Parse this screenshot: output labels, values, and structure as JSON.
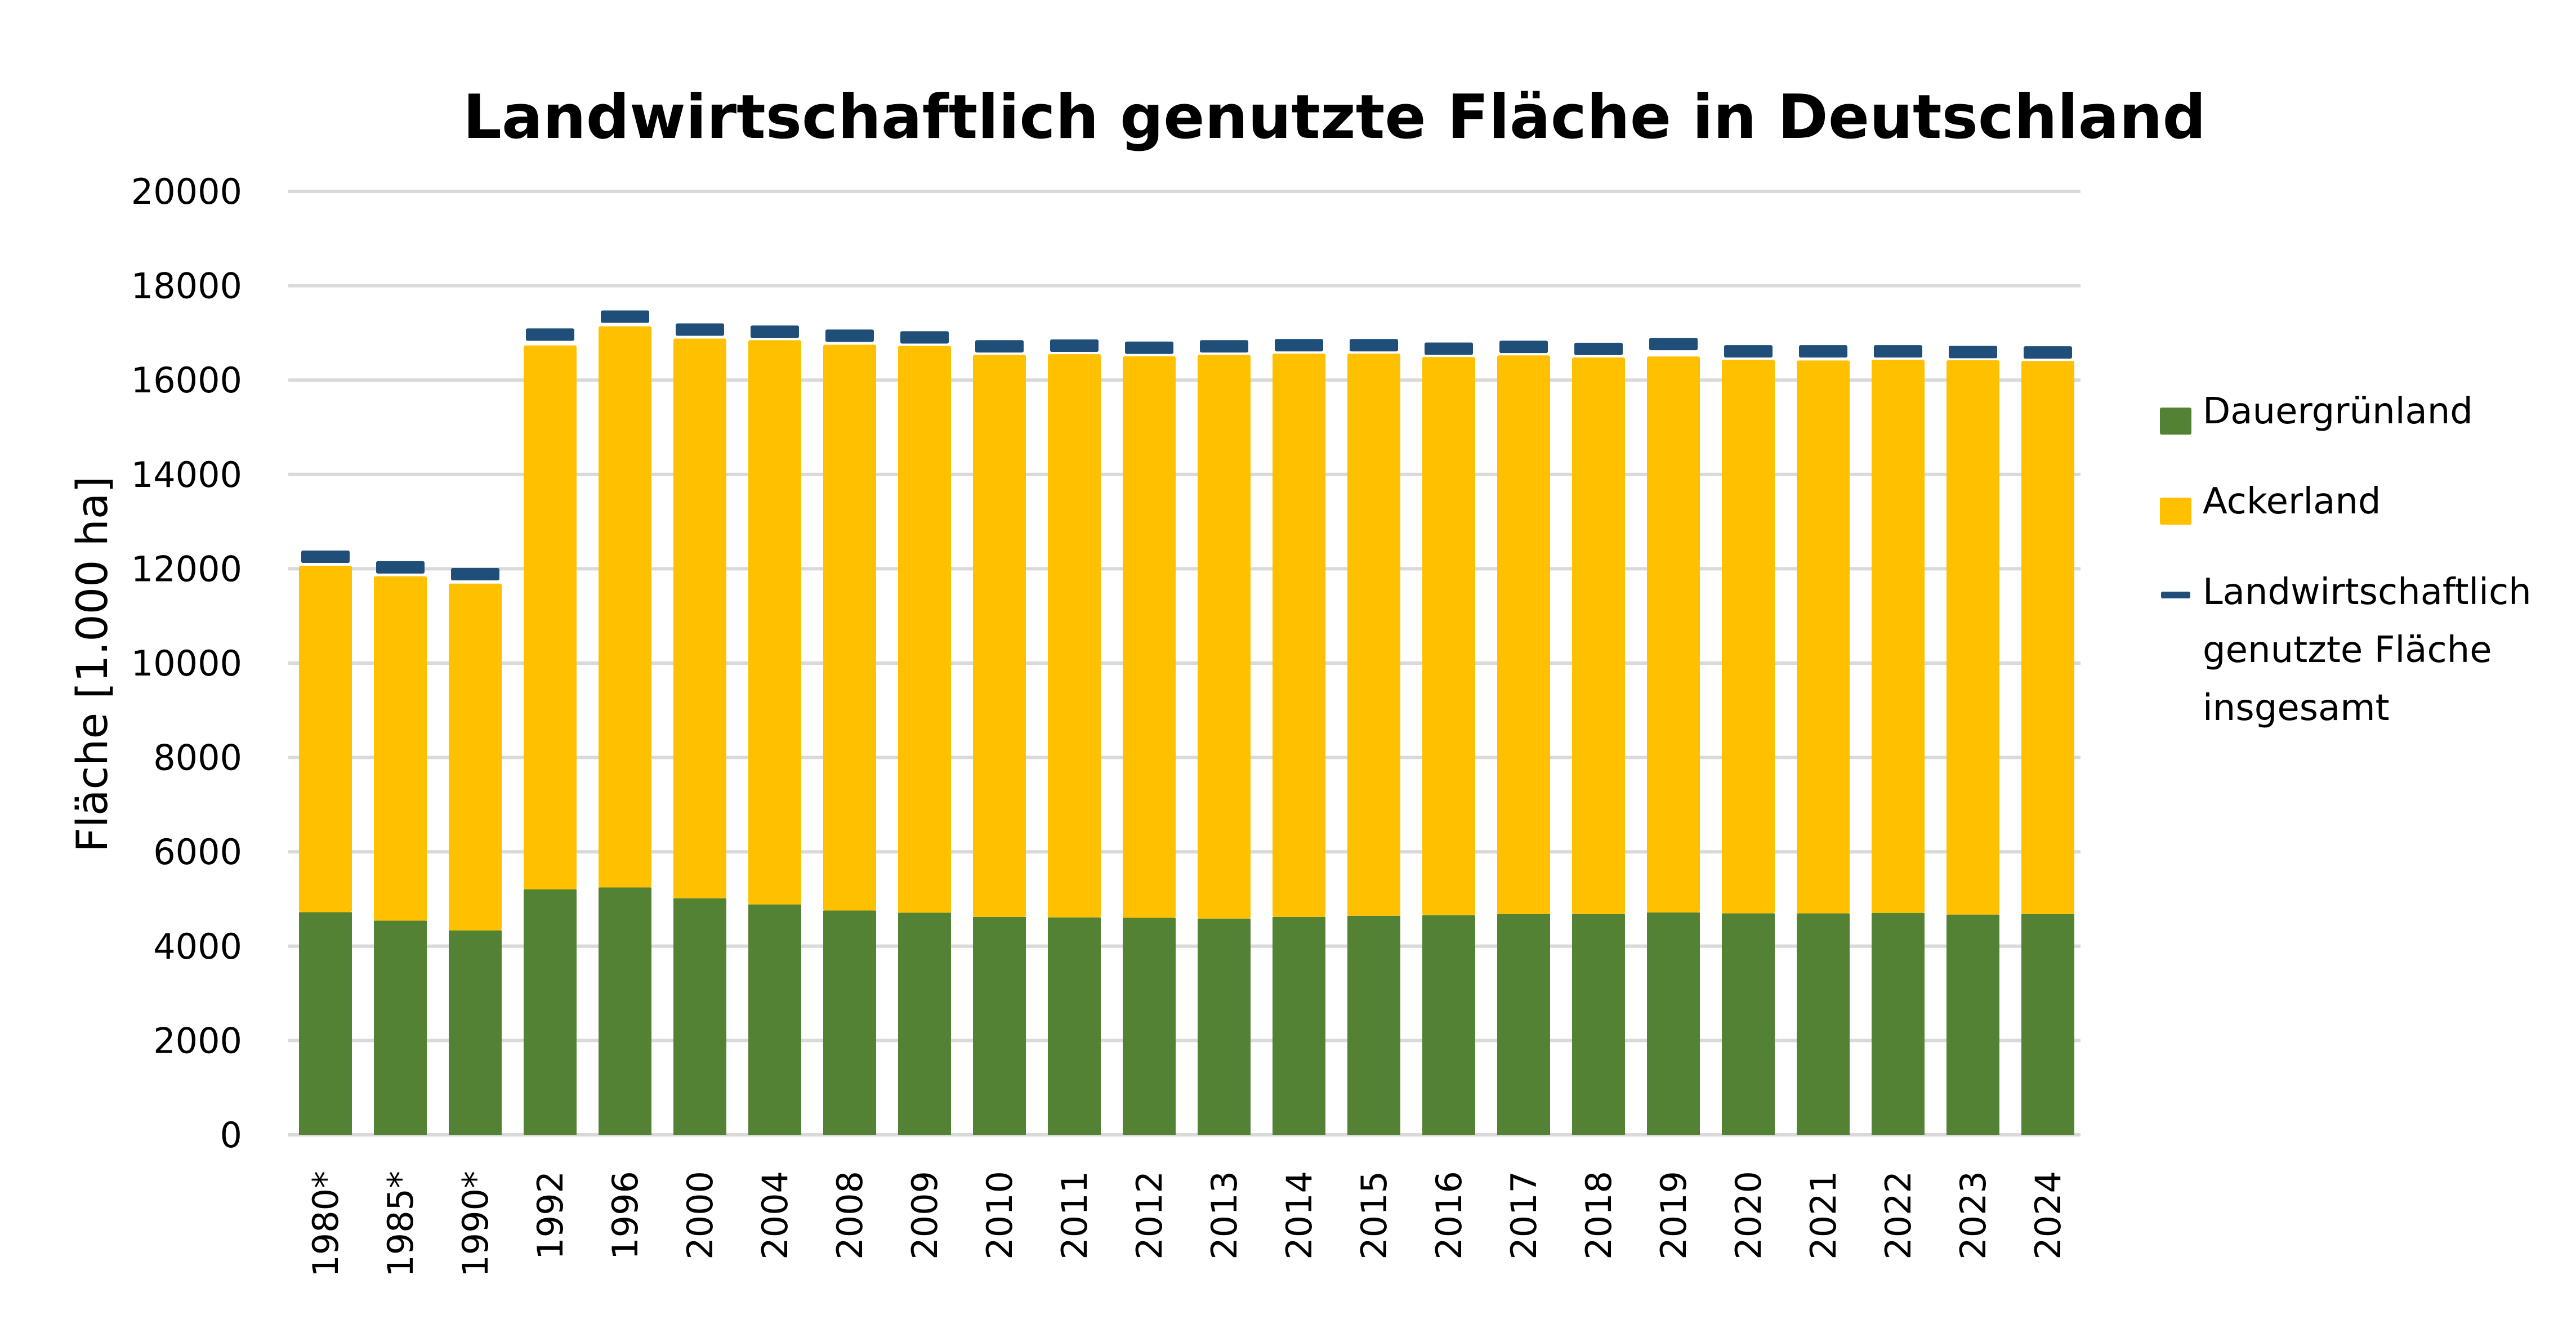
{
  "chart_data": {
    "type": "bar",
    "stacked": true,
    "title": "Landwirtschaftlich genutzte Fläche in Deutschland",
    "xlabel": "",
    "ylabel": "Fläche [1.000 ha]",
    "ylim": [
      0,
      20000
    ],
    "yticks": [
      0,
      2000,
      4000,
      6000,
      8000,
      10000,
      12000,
      14000,
      16000,
      18000,
      20000
    ],
    "grid": true,
    "legend_position": "right",
    "categories": [
      "1980*",
      "1985*",
      "1990*",
      "1992",
      "1996",
      "2000",
      "2004",
      "2008",
      "2009",
      "2010",
      "2011",
      "2012",
      "2013",
      "2014",
      "2015",
      "2016",
      "2017",
      "2018",
      "2019",
      "2020",
      "2021",
      "2022",
      "2023",
      "2024"
    ],
    "series": [
      {
        "name": "Dauergrünland",
        "kind": "bar",
        "color": "#548235",
        "values": [
          4720,
          4540,
          4335,
          5205,
          5245,
          5015,
          4885,
          4755,
          4710,
          4620,
          4610,
          4600,
          4585,
          4620,
          4645,
          4655,
          4680,
          4680,
          4715,
          4695,
          4695,
          4705,
          4670,
          4680
        ]
      },
      {
        "name": "Ackerland",
        "kind": "bar",
        "color": "#ffc000",
        "values": [
          7345,
          7300,
          7350,
          11530,
          11895,
          11865,
          11960,
          11995,
          12015,
          11915,
          11940,
          11905,
          11950,
          11940,
          11915,
          11835,
          11845,
          11800,
          11785,
          11735,
          11720,
          11725,
          11750,
          11725
        ]
      },
      {
        "name": "Landwirtschaftlich genutzte Fläche insgesamt",
        "kind": "marker",
        "color": "#1f4e79",
        "values": [
          12255,
          12030,
          11885,
          16965,
          17345,
          17070,
          17025,
          16940,
          16905,
          16715,
          16730,
          16685,
          16715,
          16740,
          16740,
          16665,
          16705,
          16660,
          16765,
          16610,
          16610,
          16610,
          16595,
          16585
        ]
      }
    ]
  },
  "legend": {
    "items": [
      {
        "label": "Dauergrünland",
        "color": "#548235",
        "shape": "square"
      },
      {
        "label": "Ackerland",
        "color": "#ffc000",
        "shape": "square"
      },
      {
        "label_lines": [
          "Landwirtschaftlich",
          "genutzte Fläche",
          "insgesamt"
        ],
        "color": "#1f4e79",
        "shape": "dash"
      }
    ]
  }
}
